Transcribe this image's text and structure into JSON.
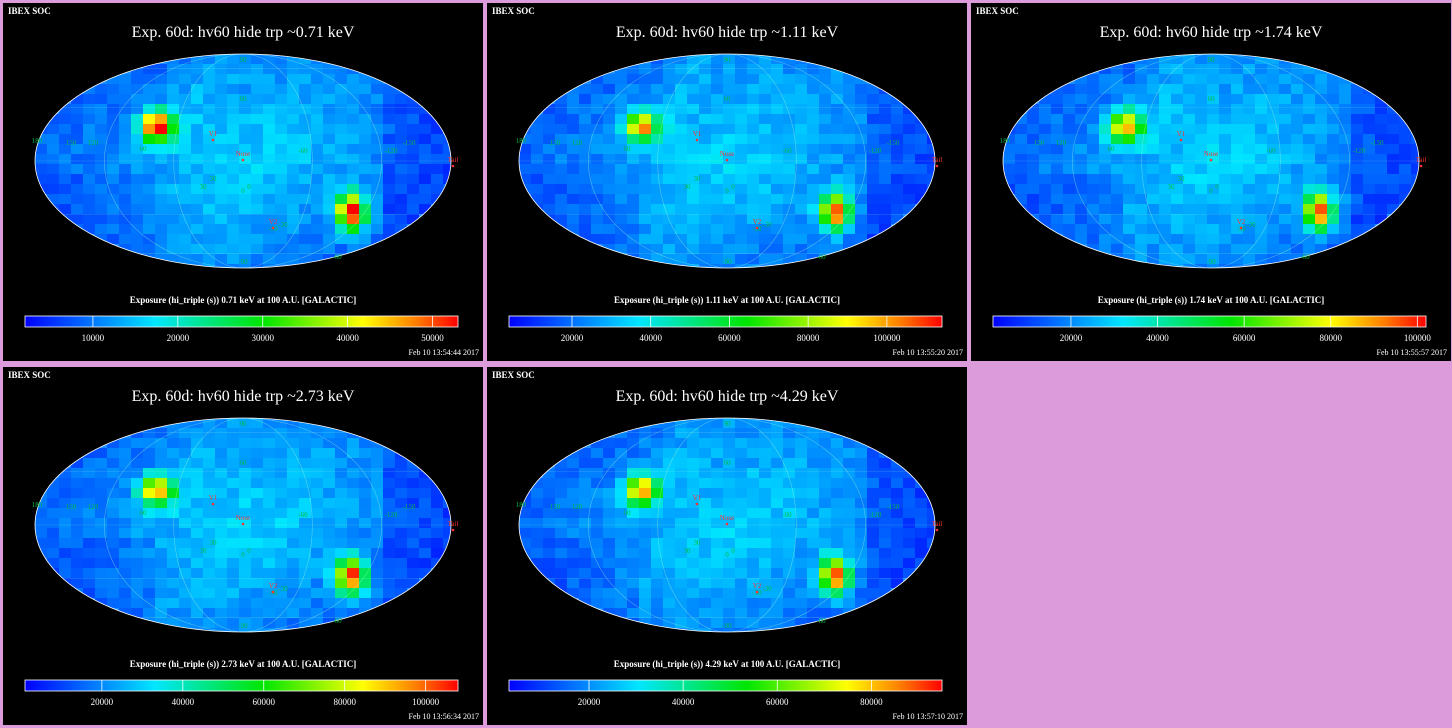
{
  "panels": [
    {
      "soc_label": "IBEX SOC",
      "title": "Exp.   60d: hv60 hide trp ~0.71 keV",
      "colorbar_label": "Exposure (hi_triple (s))  0.71 keV at 100 A.U. [GALACTIC]",
      "colorbar_ticks": [
        "10000",
        "20000",
        "30000",
        "40000",
        "50000"
      ],
      "colorbar_range": [
        2000,
        53000
      ],
      "colorbar_tick_values": [
        10000,
        20000,
        30000,
        40000,
        50000
      ],
      "date": "Feb 10 13:54:44 2017"
    },
    {
      "soc_label": "IBEX SOC",
      "title": "Exp.   60d: hv60 hide trp ~1.11 keV",
      "colorbar_label": "Exposure (hi_triple (s))  1.11 keV at 100 A.U. [GALACTIC]",
      "colorbar_ticks": [
        "20000",
        "40000",
        "60000",
        "80000",
        "100000"
      ],
      "colorbar_range": [
        4000,
        114000
      ],
      "colorbar_tick_values": [
        20000,
        40000,
        60000,
        80000,
        100000
      ],
      "date": "Feb 10 13:55:20 2017"
    },
    {
      "soc_label": "IBEX SOC",
      "title": "Exp.   60d: hv60 hide trp ~1.74 keV",
      "colorbar_label": "Exposure (hi_triple (s))  1.74 keV at 100 A.U. [GALACTIC]",
      "colorbar_ticks": [
        "20000",
        "40000",
        "60000",
        "80000",
        "100000"
      ],
      "colorbar_range": [
        2000,
        102000
      ],
      "colorbar_tick_values": [
        20000,
        40000,
        60000,
        80000,
        100000
      ],
      "date": "Feb 10 13:55:57 2017"
    },
    {
      "soc_label": "IBEX SOC",
      "title": "Exp.   60d: hv60 hide trp ~2.73 keV",
      "colorbar_label": "Exposure (hi_triple (s))  2.73 keV at 100 A.U. [GALACTIC]",
      "colorbar_ticks": [
        "20000",
        "40000",
        "60000",
        "80000",
        "100000"
      ],
      "colorbar_range": [
        1000,
        108000
      ],
      "colorbar_tick_values": [
        20000,
        40000,
        60000,
        80000,
        100000
      ],
      "date": "Feb 10 13:56:34 2017"
    },
    {
      "soc_label": "IBEX SOC",
      "title": "Exp.   60d: hv60 hide trp ~4.29 keV",
      "colorbar_label": "Exposure (hi_triple (s))  4.29 keV at 100 A.U. [GALACTIC]",
      "colorbar_ticks": [
        "20000",
        "40000",
        "60000",
        "80000"
      ],
      "colorbar_range": [
        3000,
        95000
      ],
      "colorbar_tick_values": [
        20000,
        40000,
        60000,
        80000
      ],
      "date": "Feb 10 13:57:10 2017"
    }
  ],
  "map_labels": {
    "v1": "V1",
    "v2": "V2",
    "nose": "Nose",
    "tail": "Tail",
    "grid_numbers": [
      "90",
      "60",
      "30",
      "0",
      "-30",
      "-60",
      "-90",
      "120",
      "60",
      "30",
      "0",
      "-30",
      "-60",
      "-120",
      "-150",
      "180",
      "150"
    ]
  },
  "colors": {
    "background": "#dc9cdc",
    "panel": "#000000",
    "map_base": "#1a8cff",
    "grid": "#00bb44",
    "marker": "#ff3030"
  }
}
